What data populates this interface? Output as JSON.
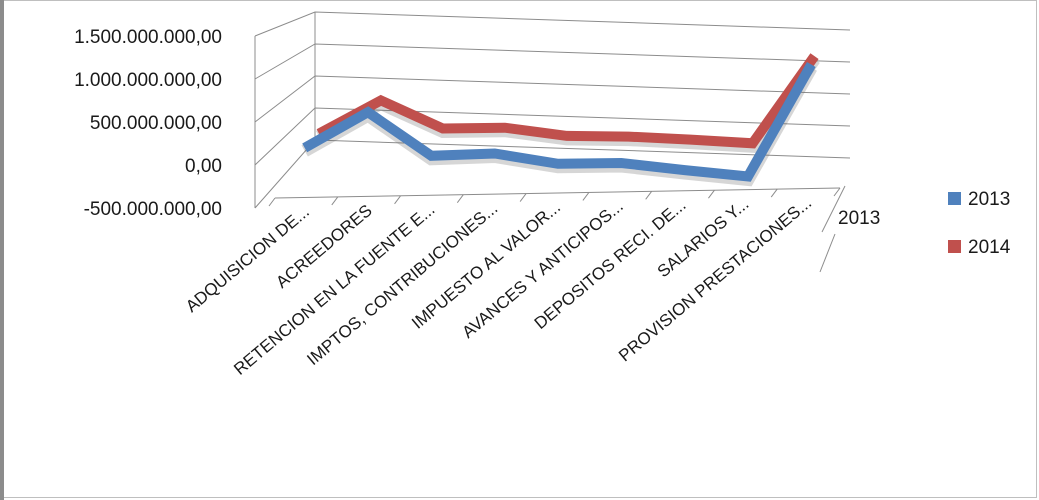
{
  "chart_data": {
    "type": "line",
    "style": "3d-line",
    "title": "",
    "xlabel": "",
    "ylabel": "",
    "ylim": [
      -500000000,
      1500000000
    ],
    "y_ticks": [
      "1.500.000.000,00",
      "1.000.000.000,00",
      "500.000.000,00",
      "0,00",
      "-500.000.000,00"
    ],
    "categories": [
      "ADQUISICION DE...",
      "ACREEDORES",
      "RETENCION EN LA FUENTE E...",
      "IMPTOS, CONTRIBUCIONES...",
      "IMPUESTO AL VALOR...",
      "AVANCES Y ANTICIPOS...",
      "DEPOSITOS RECI. DE...",
      "SALARIOS Y...",
      "PROVISION PRESTACIONES..."
    ],
    "depth_labels": [
      "2013"
    ],
    "series": [
      {
        "name": "2013",
        "color": "#4f81bd",
        "values": [
          0,
          450000000,
          -100000000,
          -70000000,
          -200000000,
          -190000000,
          -280000000,
          -360000000,
          1050000000
        ]
      },
      {
        "name": "2014",
        "color": "#c0504d",
        "values": [
          0,
          450000000,
          70000000,
          80000000,
          -30000000,
          -40000000,
          -80000000,
          -130000000,
          1050000000
        ]
      }
    ],
    "grid": true,
    "legend_position": "right"
  }
}
